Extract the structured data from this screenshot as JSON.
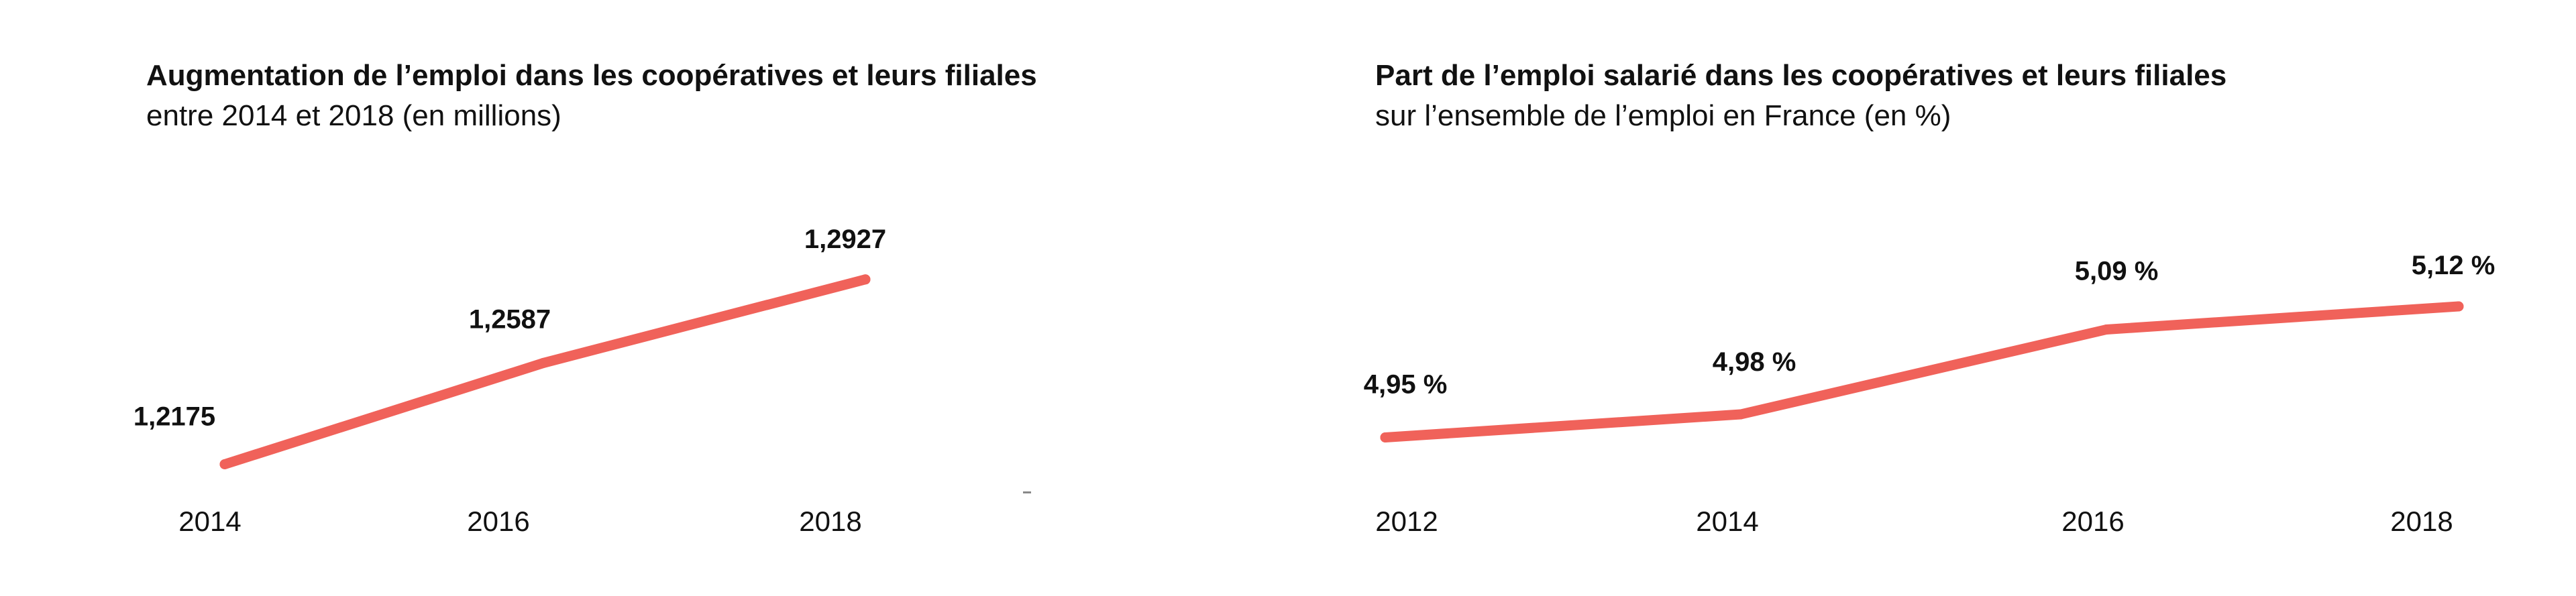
{
  "chart_data": [
    {
      "type": "line",
      "title": "Augmentation de l’emploi dans les coopératives et leurs filiales",
      "subtitle": "entre 2014 et 2018 (en millions)",
      "categories": [
        "2014",
        "2016",
        "2018"
      ],
      "values": [
        1.2175,
        1.2587,
        1.2927
      ],
      "data_labels": [
        "1,2175",
        "1,2587",
        "1,2927"
      ],
      "ylim": [
        1.18,
        1.33
      ],
      "grid": false,
      "color": "#f0625a"
    },
    {
      "type": "line",
      "title": "Part de l’emploi salarié dans les coopératives et leurs filiales",
      "subtitle": "sur l’ensemble de l’emploi en France (en %)",
      "categories": [
        "2012",
        "2014",
        "2016",
        "2018"
      ],
      "values": [
        4.95,
        4.98,
        5.09,
        5.12
      ],
      "data_labels": [
        "4,95 %",
        "4,98 %",
        "5,09 %",
        "5,12 %"
      ],
      "ylim": [
        4.8,
        5.3
      ],
      "grid": false,
      "color": "#f0625a"
    }
  ]
}
